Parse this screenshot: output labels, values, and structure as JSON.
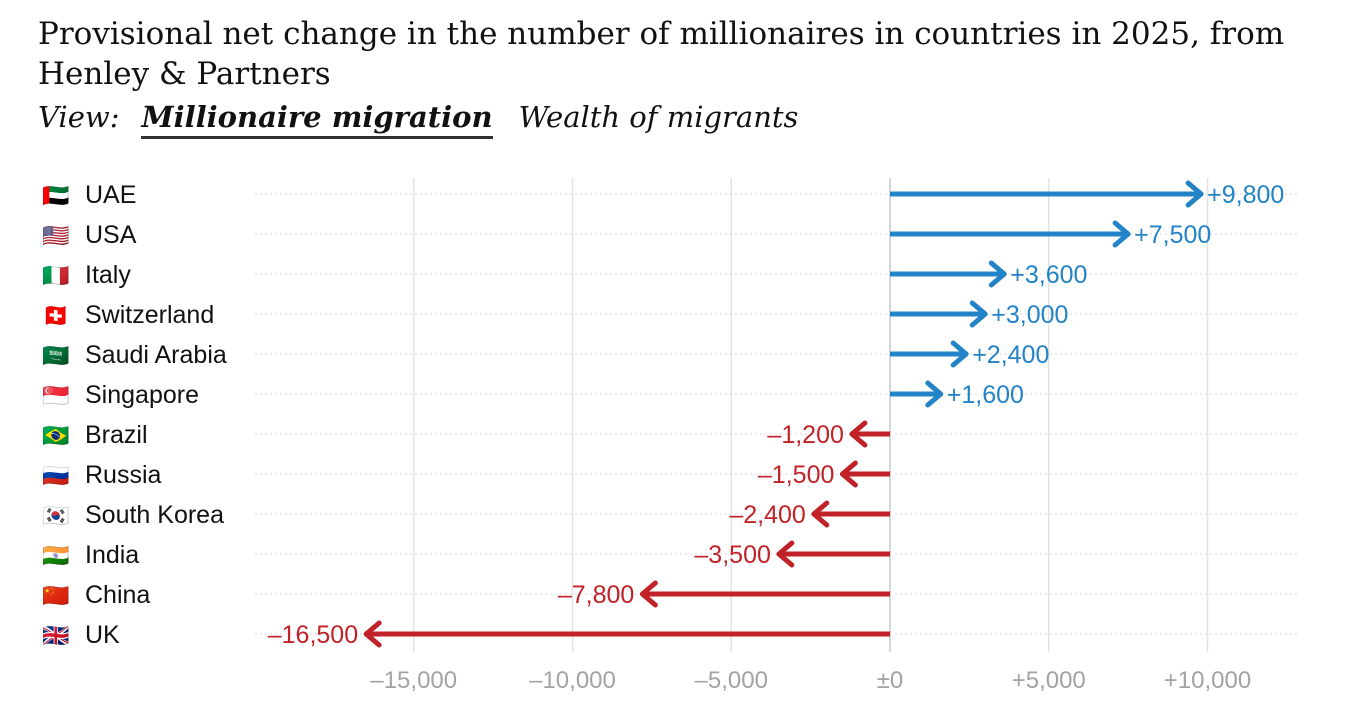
{
  "title": "Provisional net change in the number of millionaires in countries in 2025, from Henley & Partners",
  "view": {
    "label": "View:",
    "options": [
      "Millionaire migration",
      "Wealth of migrants"
    ],
    "active": 0
  },
  "colors": {
    "positive": "#2383c7",
    "negative": "#c02228",
    "grid": "#e3e3e3",
    "tick": "#a3a3a3"
  },
  "chart_data": {
    "type": "bar",
    "orientation": "horizontal",
    "marker": "arrow",
    "title": "Provisional net change in the number of millionaires in countries in 2025, from Henley & Partners",
    "xlabel": "",
    "ylabel": "",
    "xlim": [
      -16500,
      11500
    ],
    "xticks": [
      -15000,
      -10000,
      -5000,
      0,
      5000,
      10000
    ],
    "xtick_labels": [
      "–15,000",
      "–10,000",
      "–5,000",
      "±0",
      "+5,000",
      "+10,000"
    ],
    "grid": true,
    "categories": [
      "UAE",
      "USA",
      "Italy",
      "Switzerland",
      "Saudi Arabia",
      "Singapore",
      "Brazil",
      "Russia",
      "South Korea",
      "India",
      "China",
      "UK"
    ],
    "flags": [
      "🇦🇪",
      "🇺🇸",
      "🇮🇹",
      "🇨🇭",
      "🇸🇦",
      "🇸🇬",
      "🇧🇷",
      "🇷🇺",
      "🇰🇷",
      "🇮🇳",
      "🇨🇳",
      "🇬🇧"
    ],
    "values": [
      9800,
      7500,
      3600,
      3000,
      2400,
      1600,
      -1200,
      -1500,
      -2400,
      -3500,
      -7800,
      -16500
    ],
    "value_labels": [
      "+9,800",
      "+7,500",
      "+3,600",
      "+3,000",
      "+2,400",
      "+1,600",
      "–1,200",
      "–1,500",
      "–2,400",
      "–3,500",
      "–7,800",
      "–16,500"
    ]
  }
}
